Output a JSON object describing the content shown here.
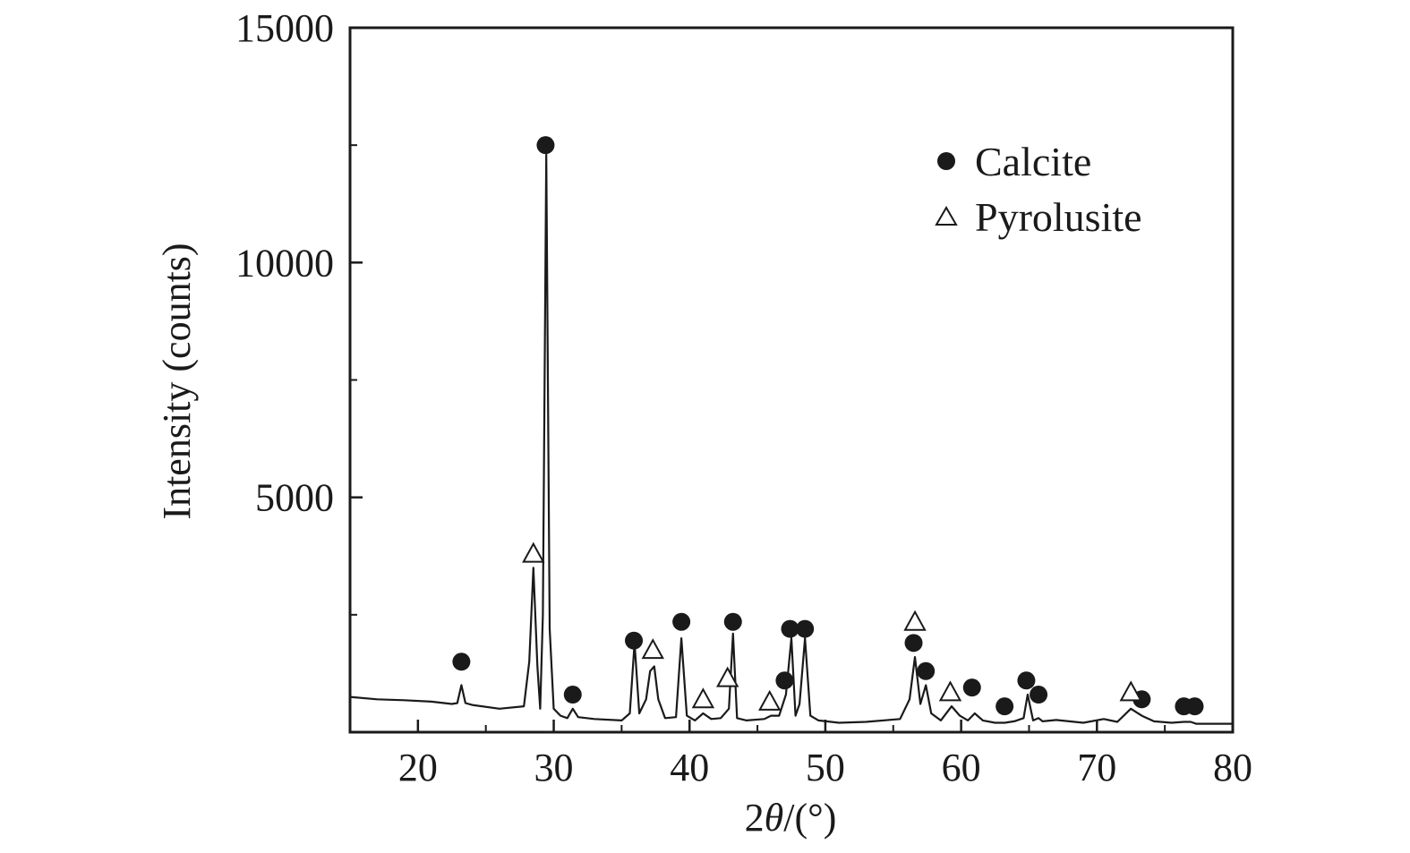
{
  "chart_data": {
    "type": "line",
    "xlabel_prefix": "2",
    "xlabel_theta": "θ",
    "xlabel_suffix": "/(°)",
    "ylabel": "Intensity (counts)",
    "xlim": [
      15,
      80
    ],
    "ylim": [
      0,
      15000
    ],
    "x_ticks": [
      20,
      30,
      40,
      50,
      60,
      70,
      80
    ],
    "y_ticks": [
      5000,
      10000,
      15000
    ],
    "x_minor_ticks": [
      25,
      35,
      45,
      55,
      65,
      75
    ],
    "y_minor_ticks": [
      2500,
      7500,
      12500
    ],
    "grid": false,
    "legend_position": "top-right",
    "series": [
      {
        "marker": "line",
        "color": "#1a1a1a",
        "x": [
          15,
          17,
          19,
          21,
          22.5,
          22.9,
          23.2,
          23.5,
          24,
          26,
          27.8,
          28.2,
          28.5,
          28.8,
          29.0,
          29.2,
          29.45,
          29.7,
          30.0,
          30.5,
          31.0,
          31.4,
          31.8,
          33,
          35.0,
          35.6,
          35.95,
          36.3,
          36.8,
          37.1,
          37.4,
          37.7,
          38.2,
          39.0,
          39.4,
          39.8,
          40.4,
          41.0,
          41.6,
          42.3,
          42.9,
          43.2,
          43.5,
          44.2,
          45.5,
          46.0,
          46.6,
          47.1,
          47.5,
          47.8,
          48.1,
          48.5,
          48.9,
          49.5,
          51,
          53,
          55.5,
          56.2,
          56.6,
          57.0,
          57.4,
          57.8,
          58.5,
          59.3,
          59.9,
          60.5,
          61.0,
          61.6,
          62.5,
          63.2,
          63.9,
          64.6,
          64.9,
          65.3,
          65.7,
          66.0,
          67,
          69,
          70.5,
          71.5,
          72.5,
          73.3,
          74.2,
          75.5,
          76.4,
          76.9,
          77.3,
          78.5,
          80
        ],
        "y": [
          750,
          700,
          680,
          650,
          600,
          620,
          1000,
          620,
          580,
          500,
          550,
          1500,
          3500,
          1400,
          500,
          2500,
          12300,
          2200,
          500,
          350,
          300,
          500,
          320,
          280,
          250,
          400,
          1900,
          400,
          700,
          1300,
          1400,
          700,
          300,
          320,
          2000,
          350,
          250,
          400,
          280,
          300,
          500,
          2100,
          300,
          250,
          280,
          350,
          350,
          800,
          2000,
          350,
          600,
          2000,
          350,
          250,
          200,
          220,
          280,
          700,
          1600,
          600,
          1000,
          400,
          250,
          550,
          350,
          250,
          400,
          250,
          200,
          200,
          230,
          300,
          800,
          250,
          300,
          230,
          260,
          200,
          280,
          220,
          500,
          350,
          230,
          200,
          220,
          220,
          180,
          180,
          180
        ]
      }
    ],
    "legend": [
      {
        "label": "Calcite",
        "marker": "filled-circle"
      },
      {
        "label": "Pyrolusite",
        "marker": "open-triangle"
      }
    ],
    "annotations": {
      "calcite_markers": [
        {
          "x": 23.2,
          "y": 1500
        },
        {
          "x": 29.4,
          "y": 12500
        },
        {
          "x": 31.4,
          "y": 800
        },
        {
          "x": 35.9,
          "y": 1950
        },
        {
          "x": 39.4,
          "y": 2350
        },
        {
          "x": 43.2,
          "y": 2350
        },
        {
          "x": 47.0,
          "y": 1100
        },
        {
          "x": 47.4,
          "y": 2200
        },
        {
          "x": 48.5,
          "y": 2200
        },
        {
          "x": 56.5,
          "y": 1900
        },
        {
          "x": 57.4,
          "y": 1300
        },
        {
          "x": 60.8,
          "y": 950
        },
        {
          "x": 63.2,
          "y": 550
        },
        {
          "x": 64.8,
          "y": 1100
        },
        {
          "x": 65.7,
          "y": 800
        },
        {
          "x": 73.3,
          "y": 700
        },
        {
          "x": 76.4,
          "y": 550
        },
        {
          "x": 77.2,
          "y": 550
        }
      ],
      "pyrolusite_markers": [
        {
          "x": 28.5,
          "y": 3800
        },
        {
          "x": 37.3,
          "y": 1750
        },
        {
          "x": 41.0,
          "y": 700
        },
        {
          "x": 42.8,
          "y": 1150
        },
        {
          "x": 45.9,
          "y": 650
        },
        {
          "x": 56.6,
          "y": 2350
        },
        {
          "x": 59.2,
          "y": 850
        },
        {
          "x": 72.5,
          "y": 850
        }
      ]
    }
  }
}
